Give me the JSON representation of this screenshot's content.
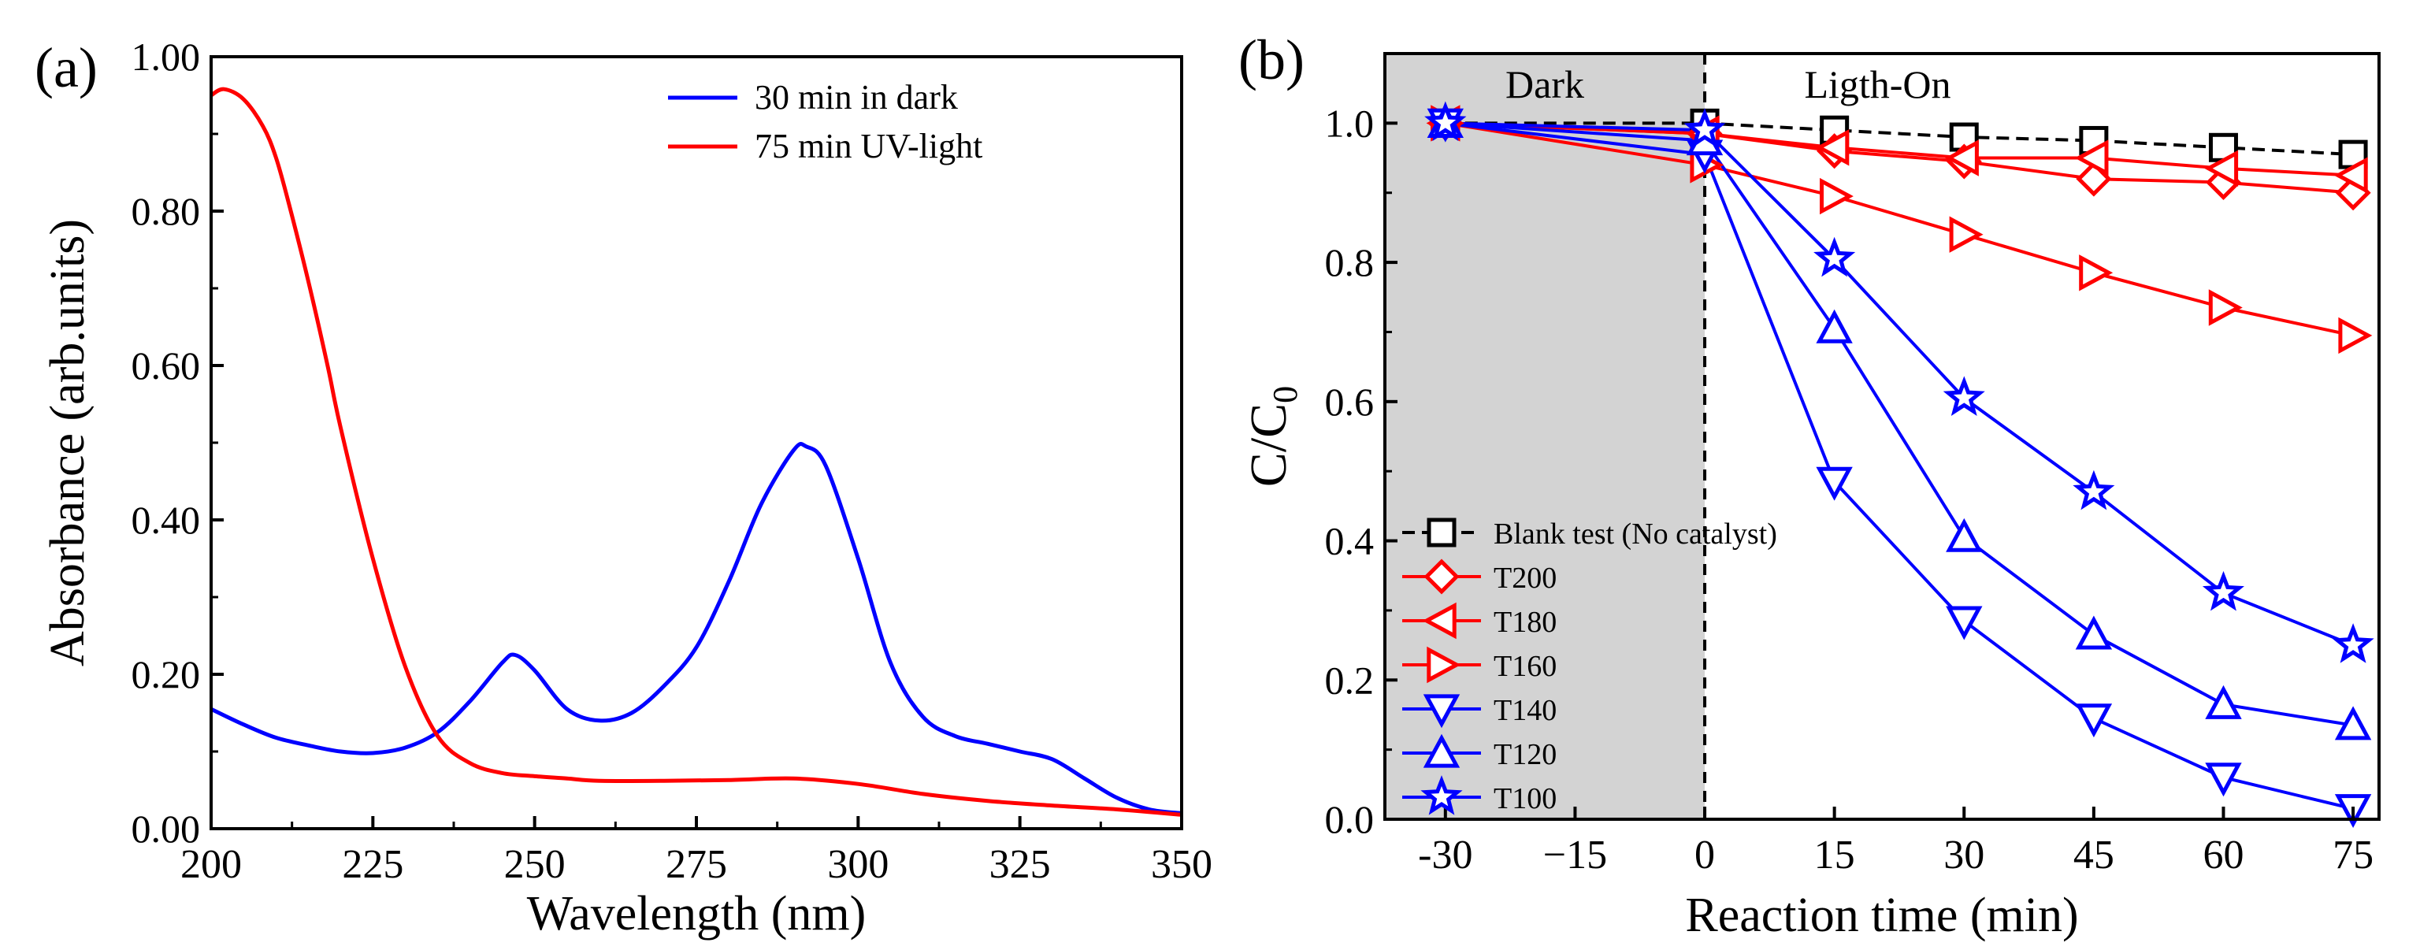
{
  "chart_data": [
    {
      "panel_label": "(a)",
      "type": "line",
      "xlabel": "Wavelength (nm)",
      "ylabel": "Absorbance (arb.units)",
      "xlim": [
        200,
        350
      ],
      "ylim": [
        0,
        1.0
      ],
      "xticks": [
        200,
        225,
        250,
        275,
        300,
        325,
        350
      ],
      "xtick_labels": [
        "200",
        "225",
        "250",
        "275",
        "300",
        "325",
        "350"
      ],
      "yticks": [
        0,
        0.2,
        0.4,
        0.6,
        0.8,
        1.0
      ],
      "ytick_labels": [
        "0.00",
        "0.20",
        "0.40",
        "0.60",
        "0.80",
        "1.00"
      ],
      "grid": false,
      "legend_position": "top-right",
      "series": [
        {
          "name": "30 min in dark",
          "color": "#0000ff",
          "x": [
            200,
            205,
            210,
            215,
            220,
            225,
            230,
            235,
            240,
            245,
            247,
            250,
            255,
            260,
            265,
            270,
            275,
            280,
            285,
            290,
            292,
            295,
            300,
            305,
            310,
            315,
            320,
            325,
            330,
            335,
            340,
            345,
            350
          ],
          "y": [
            0.155,
            0.135,
            0.118,
            0.108,
            0.1,
            0.098,
            0.105,
            0.125,
            0.165,
            0.215,
            0.225,
            0.205,
            0.155,
            0.14,
            0.15,
            0.185,
            0.235,
            0.32,
            0.42,
            0.49,
            0.495,
            0.47,
            0.35,
            0.215,
            0.145,
            0.12,
            0.11,
            0.1,
            0.09,
            0.065,
            0.04,
            0.025,
            0.02
          ]
        },
        {
          "name": "75 min UV-light",
          "color": "#ff0000",
          "x": [
            200,
            202,
            205,
            208,
            210,
            212,
            215,
            218,
            220,
            225,
            230,
            235,
            240,
            245,
            250,
            255,
            260,
            270,
            280,
            290,
            300,
            310,
            320,
            330,
            340,
            350
          ],
          "y": [
            0.95,
            0.958,
            0.945,
            0.91,
            0.87,
            0.81,
            0.71,
            0.6,
            0.52,
            0.35,
            0.21,
            0.12,
            0.085,
            0.072,
            0.068,
            0.065,
            0.062,
            0.062,
            0.063,
            0.065,
            0.058,
            0.045,
            0.036,
            0.03,
            0.025,
            0.018
          ]
        }
      ]
    },
    {
      "panel_label": "(b)",
      "type": "line",
      "xlabel": "Reaction time (min)",
      "ylabel_main": "C/C",
      "ylabel_sub": "0",
      "xlim": [
        -37,
        78
      ],
      "ylim": [
        0,
        1.1
      ],
      "xticks": [
        -30,
        -15,
        0,
        15,
        30,
        45,
        60,
        75
      ],
      "xtick_labels": [
        "-30",
        "−15",
        "0",
        "15",
        "30",
        "45",
        "60",
        "75"
      ],
      "yticks": [
        0,
        0.2,
        0.4,
        0.6,
        0.8,
        1.0
      ],
      "ytick_labels": [
        "0.0",
        "0.2",
        "0.4",
        "0.6",
        "0.8",
        "1.0"
      ],
      "grid": false,
      "legend_position": "bottom-left",
      "region_labels": {
        "dark": "Dark",
        "light": "Ligth-On"
      },
      "dark_region": [
        -37,
        0
      ],
      "series": [
        {
          "name": "Blank test (No catalyst)",
          "color": "#000000",
          "marker": "square",
          "x": [
            -30,
            0,
            15,
            30,
            45,
            60,
            75
          ],
          "y": [
            1.0,
            1.0,
            0.99,
            0.98,
            0.975,
            0.965,
            0.955
          ]
        },
        {
          "name": "T200",
          "color": "#ff0000",
          "marker": "diamond",
          "x": [
            -30,
            0,
            15,
            30,
            45,
            60,
            75
          ],
          "y": [
            1.0,
            0.985,
            0.96,
            0.945,
            0.92,
            0.915,
            0.9
          ]
        },
        {
          "name": "T180",
          "color": "#ff0000",
          "marker": "triangle-left",
          "x": [
            -30,
            0,
            15,
            30,
            45,
            60,
            75
          ],
          "y": [
            1.0,
            0.985,
            0.965,
            0.95,
            0.95,
            0.935,
            0.925
          ]
        },
        {
          "name": "T160",
          "color": "#ff0000",
          "marker": "triangle-right",
          "x": [
            -30,
            0,
            15,
            30,
            45,
            60,
            75
          ],
          "y": [
            1.0,
            0.94,
            0.895,
            0.84,
            0.785,
            0.735,
            0.695
          ]
        },
        {
          "name": "T140",
          "color": "#0000ff",
          "marker": "triangle-down",
          "x": [
            -30,
            0,
            15,
            30,
            45,
            60,
            75
          ],
          "y": [
            1.0,
            0.955,
            0.485,
            0.285,
            0.145,
            0.06,
            0.015
          ]
        },
        {
          "name": "T120",
          "color": "#0000ff",
          "marker": "triangle-up",
          "x": [
            -30,
            0,
            15,
            30,
            45,
            60,
            75
          ],
          "y": [
            1.0,
            0.975,
            0.705,
            0.405,
            0.265,
            0.165,
            0.135
          ]
        },
        {
          "name": "T100",
          "color": "#0000ff",
          "marker": "star",
          "x": [
            -30,
            0,
            15,
            30,
            45,
            60,
            75
          ],
          "y": [
            1.0,
            0.99,
            0.805,
            0.605,
            0.47,
            0.325,
            0.25
          ]
        }
      ]
    }
  ]
}
